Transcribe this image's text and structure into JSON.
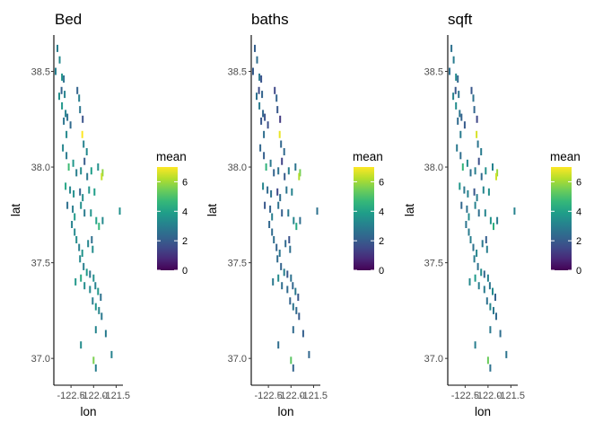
{
  "chart_data": [
    {
      "type": "heatmap",
      "title": "Bed",
      "xlabel": "lon",
      "ylabel": "lat",
      "x_ticks": [
        -122.5,
        -122.0,
        -121.5
      ],
      "x_tick_labels": [
        "-122.5",
        "-122.0",
        "-121.5"
      ],
      "y_ticks": [
        37.0,
        37.5,
        38.0,
        38.5
      ],
      "y_tick_labels": [
        "37.0",
        "37.5",
        "38.0",
        "38.5"
      ],
      "xlim": [
        -122.88,
        -121.35
      ],
      "ylim": [
        36.86,
        38.69
      ],
      "legend": {
        "title": "mean",
        "ticks": [
          0,
          2,
          4,
          6
        ],
        "range": [
          0,
          7
        ],
        "colormap": "viridis",
        "position": "right"
      },
      "grid": false,
      "cells": [
        [
          -122.8,
          38.62,
          3.0
        ],
        [
          -122.75,
          38.56,
          3.3
        ],
        [
          -122.84,
          38.5,
          3.0
        ],
        [
          -122.7,
          38.47,
          3.6
        ],
        [
          -122.66,
          38.46,
          2.6
        ],
        [
          -122.71,
          38.4,
          2.2
        ],
        [
          -122.76,
          38.37,
          3.5
        ],
        [
          -122.64,
          38.38,
          3.1
        ],
        [
          -122.7,
          38.32,
          3.7
        ],
        [
          -122.62,
          38.28,
          3.1
        ],
        [
          -122.66,
          38.24,
          2.7
        ],
        [
          -122.36,
          38.4,
          2.2
        ],
        [
          -122.32,
          38.36,
          3.0
        ],
        [
          -122.3,
          38.3,
          2.7
        ],
        [
          -122.24,
          38.25,
          1.8
        ],
        [
          -122.58,
          38.26,
          2.6
        ],
        [
          -122.51,
          38.22,
          2.4
        ],
        [
          -122.6,
          38.17,
          3.3
        ],
        [
          -122.25,
          38.17,
          7.0
        ],
        [
          -122.22,
          38.12,
          3.1
        ],
        [
          -122.2,
          38.03,
          2.0
        ],
        [
          -122.15,
          38.08,
          3.3
        ],
        [
          -122.68,
          38.1,
          3.2
        ],
        [
          -122.6,
          38.06,
          2.9
        ],
        [
          -122.55,
          38.0,
          4.8
        ],
        [
          -122.45,
          38.02,
          3.7
        ],
        [
          -122.38,
          37.97,
          3.0
        ],
        [
          -122.28,
          37.98,
          3.4
        ],
        [
          -122.14,
          37.95,
          2.8
        ],
        [
          -122.05,
          37.98,
          3.9
        ],
        [
          -121.9,
          38.0,
          3.5
        ],
        [
          -121.8,
          37.97,
          5.8
        ],
        [
          -121.82,
          37.95,
          6.4
        ],
        [
          -122.62,
          37.9,
          4.1
        ],
        [
          -122.52,
          37.88,
          3.2
        ],
        [
          -122.44,
          37.86,
          3.5
        ],
        [
          -122.3,
          37.87,
          2.2
        ],
        [
          -122.24,
          37.84,
          3.4
        ],
        [
          -122.1,
          37.88,
          3.6
        ],
        [
          -121.98,
          37.87,
          3.9
        ],
        [
          -122.58,
          37.8,
          2.6
        ],
        [
          -122.46,
          37.78,
          3.0
        ],
        [
          -122.42,
          37.74,
          3.8
        ],
        [
          -122.28,
          37.8,
          3.5
        ],
        [
          -122.2,
          37.76,
          2.9
        ],
        [
          -122.06,
          37.76,
          3.6
        ],
        [
          -121.94,
          37.72,
          4.0
        ],
        [
          -121.88,
          37.69,
          4.6
        ],
        [
          -121.8,
          37.72,
          3.3
        ],
        [
          -121.42,
          37.77,
          3.5
        ],
        [
          -122.48,
          37.7,
          3.1
        ],
        [
          -122.42,
          37.66,
          3.3
        ],
        [
          -122.38,
          37.62,
          3.4
        ],
        [
          -122.32,
          37.58,
          3.0
        ],
        [
          -122.25,
          37.55,
          3.6
        ],
        [
          -122.12,
          37.6,
          3.2
        ],
        [
          -122.04,
          37.62,
          2.5
        ],
        [
          -122.02,
          37.57,
          3.4
        ],
        [
          -122.3,
          37.52,
          3.3
        ],
        [
          -122.22,
          37.48,
          3.0
        ],
        [
          -122.15,
          37.45,
          3.8
        ],
        [
          -122.08,
          37.44,
          2.7
        ],
        [
          -122.0,
          37.42,
          3.5
        ],
        [
          -121.96,
          37.38,
          3.1
        ],
        [
          -121.9,
          37.35,
          3.7
        ],
        [
          -121.84,
          37.32,
          2.6
        ],
        [
          -122.28,
          37.42,
          4.2
        ],
        [
          -122.2,
          37.38,
          3.4
        ],
        [
          -122.08,
          37.36,
          3.3
        ],
        [
          -122.02,
          37.3,
          3.0
        ],
        [
          -121.95,
          37.27,
          3.6
        ],
        [
          -121.88,
          37.25,
          3.2
        ],
        [
          -121.82,
          37.22,
          2.8
        ],
        [
          -122.4,
          37.4,
          3.7
        ],
        [
          -121.95,
          37.15,
          3.2
        ],
        [
          -122.28,
          37.07,
          3.4
        ],
        [
          -121.73,
          37.13,
          2.9
        ],
        [
          -121.6,
          37.02,
          3.1
        ],
        [
          -122.0,
          36.99,
          5.6
        ],
        [
          -121.95,
          36.95,
          3.0
        ]
      ]
    },
    {
      "type": "heatmap",
      "title": "baths",
      "xlabel": "lon",
      "ylabel": "lat",
      "x_ticks": [
        -122.5,
        -122.0,
        -121.5
      ],
      "x_tick_labels": [
        "-122.5",
        "-122.0",
        "-121.5"
      ],
      "y_ticks": [
        37.0,
        37.5,
        38.0,
        38.5
      ],
      "y_tick_labels": [
        "37.0",
        "37.5",
        "38.0",
        "38.5"
      ],
      "xlim": [
        -122.88,
        -121.35
      ],
      "ylim": [
        36.86,
        38.69
      ],
      "legend": {
        "title": "mean",
        "ticks": [
          0,
          2,
          4,
          6
        ],
        "range": [
          0,
          7
        ],
        "colormap": "viridis",
        "position": "right"
      },
      "grid": false,
      "cells": [
        [
          -122.8,
          38.62,
          2.1
        ],
        [
          -122.75,
          38.56,
          2.5
        ],
        [
          -122.84,
          38.5,
          2.0
        ],
        [
          -122.7,
          38.47,
          2.8
        ],
        [
          -122.66,
          38.46,
          1.8
        ],
        [
          -122.71,
          38.4,
          1.6
        ],
        [
          -122.76,
          38.37,
          2.6
        ],
        [
          -122.64,
          38.38,
          2.2
        ],
        [
          -122.7,
          38.32,
          2.9
        ],
        [
          -122.62,
          38.28,
          2.3
        ],
        [
          -122.66,
          38.24,
          1.9
        ],
        [
          -122.36,
          38.4,
          1.5
        ],
        [
          -122.32,
          38.36,
          2.2
        ],
        [
          -122.3,
          38.3,
          1.9
        ],
        [
          -122.24,
          38.25,
          1.2
        ],
        [
          -122.58,
          38.26,
          1.8
        ],
        [
          -122.51,
          38.22,
          1.7
        ],
        [
          -122.6,
          38.17,
          2.5
        ],
        [
          -122.25,
          38.17,
          6.8
        ],
        [
          -122.22,
          38.12,
          2.3
        ],
        [
          -122.2,
          38.03,
          1.4
        ],
        [
          -122.15,
          38.08,
          2.4
        ],
        [
          -122.68,
          38.1,
          2.3
        ],
        [
          -122.6,
          38.06,
          2.1
        ],
        [
          -122.55,
          38.0,
          4.5
        ],
        [
          -122.45,
          38.02,
          2.8
        ],
        [
          -122.38,
          37.97,
          2.2
        ],
        [
          -122.28,
          37.98,
          2.6
        ],
        [
          -122.14,
          37.95,
          2.0
        ],
        [
          -122.05,
          37.98,
          3.0
        ],
        [
          -121.9,
          38.0,
          2.7
        ],
        [
          -121.8,
          37.97,
          5.5
        ],
        [
          -121.82,
          37.95,
          6.2
        ],
        [
          -122.62,
          37.9,
          3.2
        ],
        [
          -122.52,
          37.88,
          2.4
        ],
        [
          -122.44,
          37.86,
          2.6
        ],
        [
          -122.3,
          37.87,
          1.5
        ],
        [
          -122.24,
          37.84,
          2.5
        ],
        [
          -122.1,
          37.88,
          2.7
        ],
        [
          -121.98,
          37.87,
          3.1
        ],
        [
          -122.58,
          37.8,
          1.9
        ],
        [
          -122.46,
          37.78,
          2.2
        ],
        [
          -122.42,
          37.74,
          3.0
        ],
        [
          -122.28,
          37.8,
          2.6
        ],
        [
          -122.2,
          37.76,
          2.1
        ],
        [
          -122.06,
          37.76,
          2.8
        ],
        [
          -121.94,
          37.72,
          3.2
        ],
        [
          -121.88,
          37.69,
          4.2
        ],
        [
          -121.8,
          37.72,
          2.5
        ],
        [
          -121.42,
          37.77,
          2.6
        ],
        [
          -122.48,
          37.7,
          2.3
        ],
        [
          -122.42,
          37.66,
          2.4
        ],
        [
          -122.38,
          37.62,
          2.5
        ],
        [
          -122.32,
          37.58,
          2.2
        ],
        [
          -122.25,
          37.55,
          2.7
        ],
        [
          -122.12,
          37.6,
          2.4
        ],
        [
          -122.04,
          37.62,
          1.8
        ],
        [
          -122.02,
          37.57,
          2.5
        ],
        [
          -122.3,
          37.52,
          2.4
        ],
        [
          -122.22,
          37.48,
          2.2
        ],
        [
          -122.15,
          37.45,
          3.0
        ],
        [
          -122.08,
          37.44,
          1.9
        ],
        [
          -122.0,
          37.42,
          2.6
        ],
        [
          -121.96,
          37.38,
          2.3
        ],
        [
          -121.9,
          37.35,
          2.8
        ],
        [
          -121.84,
          37.32,
          1.9
        ],
        [
          -122.28,
          37.42,
          3.4
        ],
        [
          -122.2,
          37.38,
          2.5
        ],
        [
          -122.08,
          37.36,
          2.4
        ],
        [
          -122.02,
          37.3,
          2.2
        ],
        [
          -121.95,
          37.27,
          2.7
        ],
        [
          -121.88,
          37.25,
          2.4
        ],
        [
          -121.82,
          37.22,
          2.0
        ],
        [
          -122.4,
          37.4,
          2.8
        ],
        [
          -121.95,
          37.15,
          2.4
        ],
        [
          -122.28,
          37.07,
          2.5
        ],
        [
          -121.73,
          37.13,
          2.1
        ],
        [
          -121.6,
          37.02,
          2.3
        ],
        [
          -122.0,
          36.99,
          5.2
        ],
        [
          -121.95,
          36.95,
          2.2
        ]
      ]
    },
    {
      "type": "heatmap",
      "title": "sqft",
      "xlabel": "lon",
      "ylabel": "lat",
      "x_ticks": [
        -122.5,
        -122.0,
        -121.5
      ],
      "x_tick_labels": [
        "-122.5",
        "-122.0",
        "-121.5"
      ],
      "y_ticks": [
        37.0,
        37.5,
        38.0,
        38.5
      ],
      "y_tick_labels": [
        "37.0",
        "37.5",
        "38.0",
        "38.5"
      ],
      "xlim": [
        -122.88,
        -121.35
      ],
      "ylim": [
        36.86,
        38.69
      ],
      "legend": {
        "title": "mean",
        "ticks": [
          0,
          2,
          4,
          6
        ],
        "range": [
          0,
          7
        ],
        "colormap": "viridis",
        "position": "right"
      },
      "grid": false,
      "cells": [
        [
          -122.8,
          38.62,
          2.6
        ],
        [
          -122.75,
          38.56,
          2.9
        ],
        [
          -122.84,
          38.5,
          2.5
        ],
        [
          -122.7,
          38.47,
          3.3
        ],
        [
          -122.66,
          38.46,
          2.3
        ],
        [
          -122.71,
          38.4,
          1.9
        ],
        [
          -122.76,
          38.37,
          3.1
        ],
        [
          -122.64,
          38.38,
          2.7
        ],
        [
          -122.7,
          38.32,
          3.4
        ],
        [
          -122.62,
          38.28,
          2.7
        ],
        [
          -122.66,
          38.24,
          2.4
        ],
        [
          -122.36,
          38.4,
          1.9
        ],
        [
          -122.32,
          38.36,
          2.6
        ],
        [
          -122.3,
          38.3,
          2.3
        ],
        [
          -122.24,
          38.25,
          1.5
        ],
        [
          -122.58,
          38.26,
          2.2
        ],
        [
          -122.51,
          38.22,
          2.0
        ],
        [
          -122.6,
          38.17,
          2.9
        ],
        [
          -122.25,
          38.17,
          6.6
        ],
        [
          -122.22,
          38.12,
          2.7
        ],
        [
          -122.2,
          38.03,
          1.7
        ],
        [
          -122.15,
          38.08,
          2.9
        ],
        [
          -122.68,
          38.1,
          2.8
        ],
        [
          -122.6,
          38.06,
          2.5
        ],
        [
          -122.55,
          38.0,
          4.6
        ],
        [
          -122.45,
          38.02,
          3.3
        ],
        [
          -122.38,
          37.97,
          2.6
        ],
        [
          -122.28,
          37.98,
          3.0
        ],
        [
          -122.14,
          37.95,
          2.4
        ],
        [
          -122.05,
          37.98,
          3.5
        ],
        [
          -121.9,
          38.0,
          3.1
        ],
        [
          -121.8,
          37.97,
          5.9
        ],
        [
          -121.82,
          37.95,
          6.5
        ],
        [
          -122.62,
          37.9,
          3.7
        ],
        [
          -122.52,
          37.88,
          2.8
        ],
        [
          -122.44,
          37.86,
          3.1
        ],
        [
          -122.3,
          37.87,
          1.9
        ],
        [
          -122.24,
          37.84,
          3.0
        ],
        [
          -122.1,
          37.88,
          3.2
        ],
        [
          -121.98,
          37.87,
          3.5
        ],
        [
          -122.58,
          37.8,
          2.3
        ],
        [
          -122.46,
          37.78,
          2.6
        ],
        [
          -122.42,
          37.74,
          3.4
        ],
        [
          -122.28,
          37.8,
          3.1
        ],
        [
          -122.2,
          37.76,
          2.5
        ],
        [
          -122.06,
          37.76,
          3.2
        ],
        [
          -121.94,
          37.72,
          3.6
        ],
        [
          -121.88,
          37.69,
          4.4
        ],
        [
          -121.8,
          37.72,
          2.9
        ],
        [
          -121.42,
          37.77,
          3.1
        ],
        [
          -122.48,
          37.7,
          2.7
        ],
        [
          -122.42,
          37.66,
          2.9
        ],
        [
          -122.38,
          37.62,
          3.0
        ],
        [
          -122.32,
          37.58,
          2.6
        ],
        [
          -122.25,
          37.55,
          3.2
        ],
        [
          -122.12,
          37.6,
          2.8
        ],
        [
          -122.04,
          37.62,
          2.1
        ],
        [
          -122.02,
          37.57,
          3.0
        ],
        [
          -122.3,
          37.52,
          2.9
        ],
        [
          -122.22,
          37.48,
          2.6
        ],
        [
          -122.15,
          37.45,
          3.4
        ],
        [
          -122.08,
          37.44,
          2.3
        ],
        [
          -122.0,
          37.42,
          3.1
        ],
        [
          -121.96,
          37.38,
          2.7
        ],
        [
          -121.9,
          37.35,
          3.3
        ],
        [
          -121.84,
          37.32,
          2.2
        ],
        [
          -122.28,
          37.42,
          3.8
        ],
        [
          -122.2,
          37.38,
          3.0
        ],
        [
          -122.08,
          37.36,
          2.9
        ],
        [
          -122.02,
          37.3,
          2.6
        ],
        [
          -121.95,
          37.27,
          3.2
        ],
        [
          -121.88,
          37.25,
          2.8
        ],
        [
          -121.82,
          37.22,
          2.4
        ],
        [
          -122.4,
          37.4,
          3.3
        ],
        [
          -121.95,
          37.15,
          2.8
        ],
        [
          -122.28,
          37.07,
          3.0
        ],
        [
          -121.73,
          37.13,
          2.5
        ],
        [
          -121.6,
          37.02,
          2.7
        ],
        [
          -122.0,
          36.99,
          5.4
        ],
        [
          -121.95,
          36.95,
          2.6
        ]
      ]
    }
  ]
}
